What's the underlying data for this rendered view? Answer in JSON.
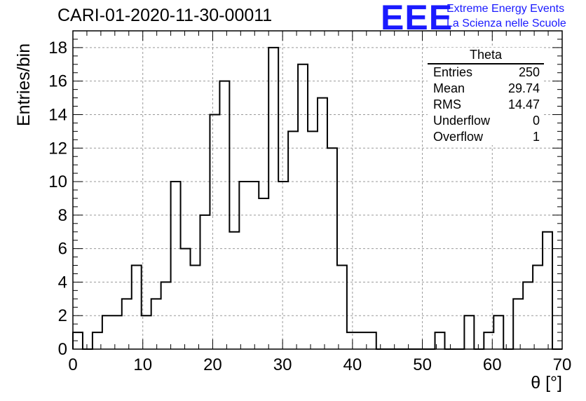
{
  "title": "CARI-01-2020-11-30-00011",
  "logo": {
    "text": "EEE",
    "line1": "Extreme Energy Events",
    "line2": "La Scienza nelle Scuole",
    "color": "#1a1aff"
  },
  "stats": {
    "name": "Theta",
    "rows": [
      {
        "label": "Entries",
        "value": "250"
      },
      {
        "label": "Mean",
        "value": "29.74"
      },
      {
        "label": "RMS",
        "value": "14.47"
      },
      {
        "label": "Underflow",
        "value": "0"
      },
      {
        "label": "Overflow",
        "value": "1"
      }
    ]
  },
  "chart_data": {
    "type": "histogram",
    "xlabel": "θ [°]",
    "ylabel": "Entries/bin",
    "xlim": [
      0,
      70
    ],
    "ylim": [
      0,
      19
    ],
    "bin_width": 1.4,
    "values": [
      1,
      0,
      1,
      2,
      2,
      3,
      5,
      2,
      3,
      4,
      10,
      6,
      5,
      8,
      14,
      16,
      7,
      10,
      10,
      9,
      18,
      10,
      13,
      17,
      13,
      15,
      12,
      5,
      1,
      1,
      1,
      0,
      0,
      0,
      0,
      0,
      0,
      1,
      0,
      0,
      2,
      0,
      1,
      2,
      0,
      3,
      4,
      5,
      7,
      0
    ],
    "x_ticks": [
      0,
      10,
      20,
      30,
      40,
      50,
      60,
      70
    ],
    "y_ticks": [
      0,
      2,
      4,
      6,
      8,
      10,
      12,
      14,
      16,
      18
    ],
    "grid": true,
    "line_color": "#000000"
  }
}
